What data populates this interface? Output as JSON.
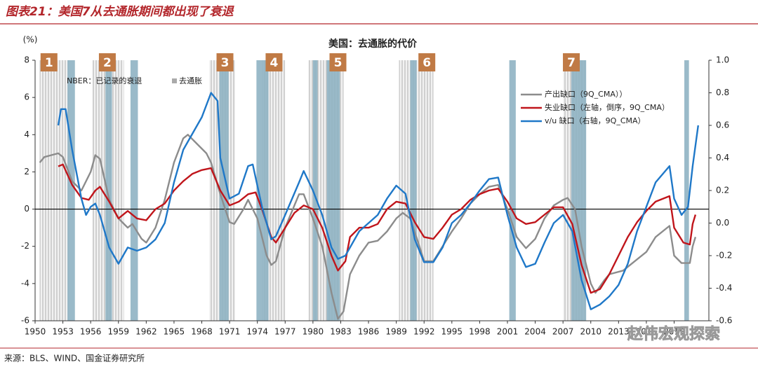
{
  "header": {
    "title": "图表21：美国7从去通胀期间都出现了衰退"
  },
  "footer": {
    "source": "来源：BLS、WIND、国金证券研究所"
  },
  "watermark": "赵伟宏观探索",
  "chart_data": {
    "type": "line",
    "title": "美国：去通胀的代价",
    "y_unit": "(%)",
    "xlim": [
      1950,
      2022.75
    ],
    "xticks": [
      1950,
      1953,
      1956,
      1959,
      1962,
      1965,
      1968,
      1971,
      1974,
      1977,
      1980,
      1983,
      1986,
      1989,
      1992,
      1995,
      1998,
      2001,
      2004,
      2007,
      2010,
      2013,
      2016,
      2019
    ],
    "ylim": [
      -6,
      8
    ],
    "yticks": [
      -6,
      -4,
      -2,
      0,
      2,
      4,
      6,
      8
    ],
    "y2lim": [
      -0.6,
      1.0
    ],
    "y2ticks": [
      -0.6,
      -0.4,
      -0.2,
      {
        "value": 0,
        "label": "0.0"
      },
      0.2,
      0.4,
      0.6,
      0.8,
      {
        "value": 1,
        "label": "1.0"
      }
    ],
    "shading_legend": {
      "recession": "NBER：已记录的衰退",
      "disinflation": "去通胀"
    },
    "recession_color": "#8fb3c3",
    "recessions": [
      [
        1953.5,
        1954.3
      ],
      [
        1957.6,
        1958.3
      ],
      [
        1960.3,
        1961.1
      ],
      [
        1969.9,
        1970.9
      ],
      [
        1973.9,
        1975.2
      ],
      [
        1980.0,
        1980.5
      ],
      [
        1981.5,
        1982.9
      ],
      [
        1990.5,
        1991.2
      ],
      [
        2001.2,
        2001.9
      ],
      [
        2007.9,
        2009.5
      ],
      [
        2020.1,
        2020.6
      ]
    ],
    "disinflations": [
      [
        1950.5,
        1953.8
      ],
      [
        1956.2,
        1959.6
      ],
      [
        1968.8,
        1971.6
      ],
      [
        1974.5,
        1977.0
      ],
      [
        1979.5,
        1983.3
      ],
      [
        1989.3,
        1993.0
      ],
      [
        2007.0,
        2009.5
      ]
    ],
    "annotation_color": "#c07a45",
    "annotations": [
      {
        "label": "1",
        "x": 1951.5
      },
      {
        "label": "2",
        "x": 1957.8
      },
      {
        "label": "3",
        "x": 1970.5
      },
      {
        "label": "4",
        "x": 1975.8
      },
      {
        "label": "5",
        "x": 1982.7
      },
      {
        "label": "6",
        "x": 1992.3
      },
      {
        "label": "7",
        "x": 2007.9
      }
    ],
    "series": [
      {
        "name": "产出缺口（9Q_CMA））",
        "color": "#8c8c8c",
        "axis": "y",
        "x": [
          1950.5,
          1951,
          1952.5,
          1953,
          1954,
          1955,
          1956,
          1956.5,
          1957,
          1958,
          1959,
          1960,
          1960.5,
          1961.5,
          1962,
          1963,
          1964,
          1965,
          1966,
          1966.5,
          1967.5,
          1968.5,
          1969,
          1970,
          1971,
          1971.5,
          1972.5,
          1973,
          1974,
          1975,
          1975.5,
          1976,
          1977,
          1978.5,
          1979,
          1980,
          1981,
          1982,
          1982.7,
          1983.3,
          1984,
          1985,
          1986,
          1987,
          1988,
          1989,
          1989.7,
          1990.5,
          1991.5,
          1992,
          1993,
          1994,
          1995,
          1996,
          1997,
          1998,
          1999,
          2000,
          2001,
          2002,
          2003,
          2004,
          2005,
          2006,
          2007,
          2007.5,
          2008.3,
          2009,
          2010,
          2010.5,
          2011.5,
          2012,
          2013.5,
          2015,
          2016,
          2017,
          2018.5,
          2019,
          2019.8,
          2020.7,
          2021,
          2021.3
        ],
        "values": [
          2.5,
          2.8,
          3.0,
          2.8,
          1.5,
          1.0,
          2.0,
          2.9,
          2.7,
          0.5,
          -0.5,
          -1.0,
          -0.8,
          -1.6,
          -1.8,
          -1.0,
          0.5,
          2.5,
          3.8,
          4.0,
          3.5,
          3.0,
          2.5,
          0.8,
          -0.7,
          -0.8,
          0,
          0.5,
          -0.5,
          -2.5,
          -3.0,
          -2.8,
          -1.0,
          0.8,
          0.8,
          -0.5,
          -2.0,
          -4.5,
          -5.9,
          -5.5,
          -3.5,
          -2.5,
          -1.8,
          -1.7,
          -1.2,
          -0.5,
          -0.2,
          -0.5,
          -2.0,
          -2.8,
          -2.8,
          -2.0,
          -1.2,
          -0.5,
          0.3,
          0.8,
          1.2,
          1.3,
          0.0,
          -1.5,
          -2.1,
          -1.6,
          -0.5,
          0.2,
          0.5,
          0.6,
          0.0,
          -2.0,
          -4.0,
          -4.5,
          -3.8,
          -3.5,
          -3.3,
          -2.7,
          -2.3,
          -1.5,
          -0.9,
          -2.5,
          -2.9,
          -2.9,
          -2.0,
          -1.5
        ]
      },
      {
        "name": "失业缺口（左轴，倒序，9Q_CMA）",
        "color": "#c0151b",
        "axis": "y",
        "x": [
          1952.5,
          1953,
          1954,
          1955,
          1955.8,
          1956.5,
          1957,
          1958,
          1959,
          1960,
          1961,
          1962,
          1963,
          1964,
          1965,
          1966,
          1967,
          1968,
          1969,
          1970,
          1971,
          1972,
          1973,
          1973.8,
          1974.5,
          1975.5,
          1976,
          1977,
          1978,
          1979,
          1980,
          1981,
          1982,
          1982.7,
          1983.5,
          1984,
          1985,
          1986,
          1987,
          1988,
          1989,
          1990,
          1991,
          1992,
          1993,
          1994,
          1995,
          1996,
          1997,
          1998,
          1999,
          2000,
          2001,
          2002,
          2003,
          2004,
          2005,
          2006,
          2007,
          2008,
          2009,
          2010,
          2011,
          2012,
          2013,
          2014,
          2015,
          2016,
          2017,
          2018.5,
          2019,
          2020,
          2020.7,
          2021,
          2021.3
        ],
        "values": [
          2.3,
          2.4,
          1.3,
          0.6,
          0.5,
          1.0,
          1.2,
          0.4,
          -0.5,
          -0.1,
          -0.5,
          -0.6,
          0,
          0.3,
          1.0,
          1.5,
          1.9,
          2.1,
          2.2,
          1.0,
          0.2,
          0.4,
          0.8,
          0.9,
          0,
          -1.5,
          -1.8,
          -1.0,
          -0.2,
          0.2,
          0,
          -1.0,
          -2.5,
          -3.3,
          -2.8,
          -1.5,
          -1.0,
          -1.0,
          -0.8,
          0,
          0.4,
          0.3,
          -0.7,
          -1.5,
          -1.6,
          -1.0,
          -0.3,
          0,
          0.5,
          0.8,
          1.0,
          1.1,
          0.4,
          -0.5,
          -0.8,
          -0.7,
          -0.3,
          0.1,
          0.1,
          -0.8,
          -3.0,
          -4.5,
          -4.3,
          -3.5,
          -2.5,
          -1.5,
          -0.7,
          -0.1,
          0.4,
          0.7,
          -1.0,
          -1.8,
          -1.9,
          -0.8,
          -0.3
        ]
      },
      {
        "name": "v/u 缺口（右轴，9Q_CMA）",
        "color": "#1f78c8",
        "axis": "y2",
        "x": [
          1952.5,
          1952.8,
          1953.3,
          1954,
          1955,
          1955.5,
          1956,
          1956.5,
          1957,
          1958,
          1959,
          1960,
          1961,
          1962,
          1963,
          1964,
          1965,
          1966,
          1967,
          1968,
          1969,
          1969.7,
          1970,
          1971,
          1972,
          1973,
          1973.5,
          1974.5,
          1975.5,
          1976,
          1977,
          1978.5,
          1979,
          1980,
          1981,
          1982,
          1982.7,
          1983.5,
          1985,
          1986,
          1987,
          1988,
          1989,
          1990,
          1991,
          1992,
          1993,
          1994,
          1995,
          1996,
          1997,
          1998,
          1999,
          2000,
          2001,
          2002,
          2003,
          2004,
          2005,
          2006,
          2007,
          2008,
          2009,
          2010,
          2011,
          2012,
          2013,
          2014,
          2015,
          2016,
          2017,
          2018.5,
          2019,
          2019.8,
          2020.5,
          2021,
          2021.6
        ],
        "values": [
          0.6,
          0.7,
          0.7,
          0.45,
          0.15,
          0.05,
          0.1,
          0.12,
          0.05,
          -0.15,
          -0.25,
          -0.15,
          -0.17,
          -0.15,
          -0.1,
          0.0,
          0.25,
          0.45,
          0.55,
          0.65,
          0.8,
          0.75,
          0.4,
          0.15,
          0.18,
          0.35,
          0.36,
          0.1,
          -0.1,
          -0.08,
          0.05,
          0.25,
          0.32,
          0.2,
          0.05,
          -0.15,
          -0.22,
          -0.2,
          -0.05,
          0.0,
          0.05,
          0.15,
          0.23,
          0.18,
          -0.1,
          -0.24,
          -0.24,
          -0.15,
          0.0,
          0.05,
          0.12,
          0.2,
          0.27,
          0.28,
          0.05,
          -0.15,
          -0.27,
          -0.25,
          -0.12,
          0.0,
          0.05,
          -0.05,
          -0.35,
          -0.53,
          -0.5,
          -0.45,
          -0.38,
          -0.25,
          -0.05,
          0.1,
          0.25,
          0.35,
          0.15,
          0.05,
          0.1,
          0.35,
          0.6
        ]
      }
    ]
  }
}
